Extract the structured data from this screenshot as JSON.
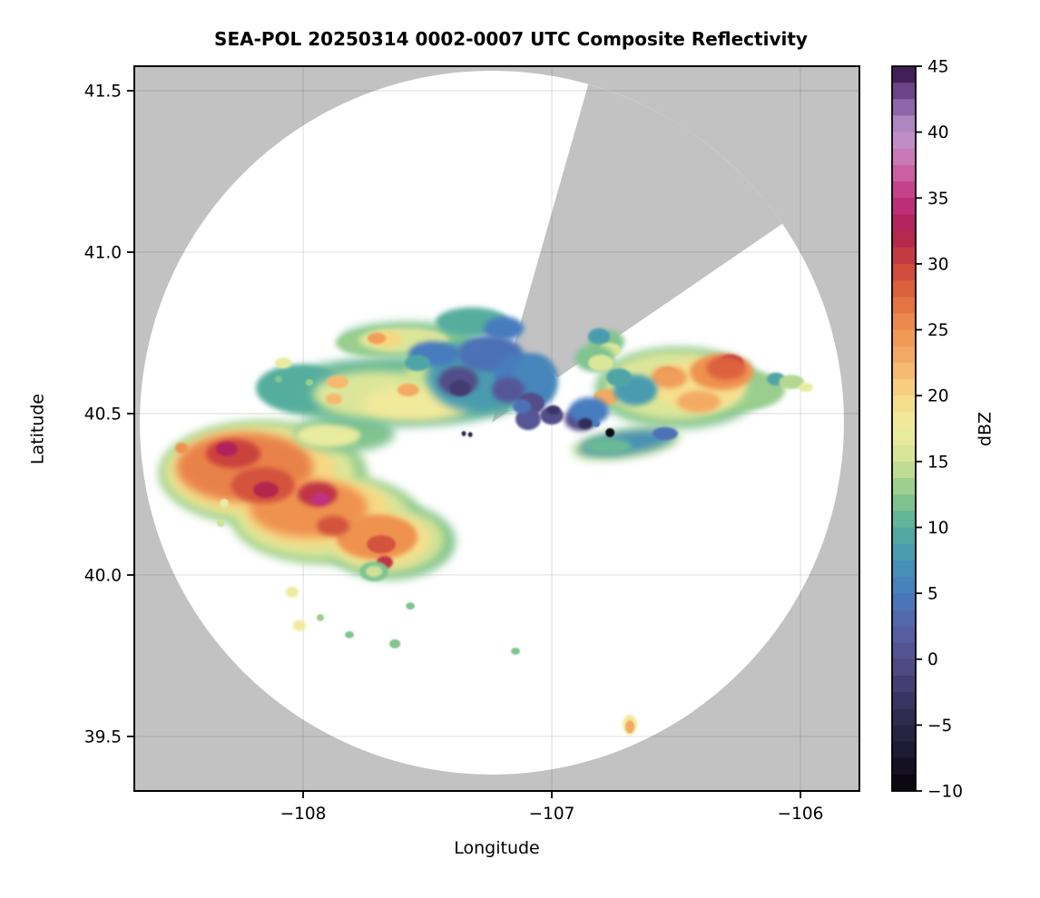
{
  "title": "SEA-POL 20250314 0002-0007 UTC Composite Reflectivity",
  "axes": {
    "xlabel": "Longitude",
    "ylabel": "Latitude",
    "xlim": [
      -108.679,
      -105.763
    ],
    "ylim": [
      39.331,
      41.576
    ],
    "xticks": [
      -108,
      -107,
      -106
    ],
    "yticks": [
      41.5,
      41.0,
      40.5,
      40.0,
      39.5
    ],
    "grid": true
  },
  "colorbar": {
    "label": "dBZ",
    "min": -10,
    "max": 45,
    "ticks": [
      45,
      40,
      35,
      30,
      25,
      20,
      15,
      10,
      5,
      0,
      -5,
      -10
    ],
    "segment_step": 1.25,
    "anchors": [
      {
        "v": -10,
        "c": "#060409"
      },
      {
        "v": -7.5,
        "c": "#18152c"
      },
      {
        "v": -5,
        "c": "#2a274a"
      },
      {
        "v": -2.5,
        "c": "#3e3a6b"
      },
      {
        "v": 0,
        "c": "#524e89"
      },
      {
        "v": 2.5,
        "c": "#5763a9"
      },
      {
        "v": 5,
        "c": "#477bbe"
      },
      {
        "v": 7.5,
        "c": "#4697b3"
      },
      {
        "v": 10,
        "c": "#55ae9d"
      },
      {
        "v": 12.5,
        "c": "#8cc98c"
      },
      {
        "v": 15,
        "c": "#cfe295"
      },
      {
        "v": 17.5,
        "c": "#f0eda1"
      },
      {
        "v": 20,
        "c": "#f6d883"
      },
      {
        "v": 22.5,
        "c": "#f4b169"
      },
      {
        "v": 25,
        "c": "#ef9250"
      },
      {
        "v": 27.5,
        "c": "#e06a3c"
      },
      {
        "v": 30,
        "c": "#cb423d"
      },
      {
        "v": 32.5,
        "c": "#ad2052"
      },
      {
        "v": 35,
        "c": "#c13380"
      },
      {
        "v": 37.5,
        "c": "#cd6fae"
      },
      {
        "v": 40,
        "c": "#bd97cc"
      },
      {
        "v": 42.5,
        "c": "#7e569d"
      },
      {
        "v": 45,
        "c": "#2f0c40"
      }
    ]
  },
  "colors": {
    "no_data_gray": "#c2c2c2",
    "coverage_white": "#ffffff",
    "grid_line": "rgba(0,0,0,0.10)",
    "frame": "#000000"
  },
  "radar": {
    "center_lon": -107.241,
    "center_lat": 40.472,
    "radius_lat_deg": 1.09,
    "blocked_sector": {
      "az_from_deg": 15.9,
      "az_to_deg": 55.6
    },
    "apex_notch_lonlat": [
      [
        -107.182,
        40.511
      ],
      [
        -107.029,
        40.663
      ],
      [
        -106.883,
        40.522
      ]
    ]
  },
  "chart_data": {
    "type": "heatmap",
    "units": "dBZ",
    "echo_format": [
      "lon",
      "lat",
      "rx_deg",
      "ry_deg",
      "dbz",
      "rot_deg_optional"
    ],
    "echoes": [
      [
        -108.161,
        40.315,
        0.42,
        0.163,
        13
      ],
      [
        -107.905,
        40.174,
        0.383,
        0.141,
        13
      ],
      [
        -107.65,
        40.104,
        0.263,
        0.118,
        12
      ],
      [
        -107.595,
        40.124,
        0.11,
        0.079,
        10
      ],
      [
        -108.179,
        40.32,
        0.383,
        0.146,
        16
      ],
      [
        -107.923,
        40.18,
        0.347,
        0.126,
        16
      ],
      [
        -107.668,
        40.11,
        0.237,
        0.104,
        15
      ],
      [
        -108.197,
        40.32,
        0.329,
        0.126,
        20
      ],
      [
        -107.942,
        40.194,
        0.292,
        0.107,
        20
      ],
      [
        -107.686,
        40.11,
        0.201,
        0.084,
        19
      ],
      [
        -108.234,
        40.334,
        0.274,
        0.107,
        26
      ],
      [
        -107.978,
        40.208,
        0.237,
        0.09,
        25
      ],
      [
        -107.704,
        40.118,
        0.164,
        0.07,
        25
      ],
      [
        -108.281,
        40.376,
        0.11,
        0.045,
        30
      ],
      [
        -108.161,
        40.278,
        0.128,
        0.056,
        29
      ],
      [
        -107.942,
        40.25,
        0.08,
        0.037,
        31
      ],
      [
        -107.88,
        40.152,
        0.066,
        0.031,
        29
      ],
      [
        -107.686,
        40.095,
        0.058,
        0.028,
        29
      ],
      [
        -108.307,
        40.39,
        0.044,
        0.022,
        33
      ],
      [
        -108.15,
        40.264,
        0.051,
        0.025,
        32
      ],
      [
        -107.931,
        40.236,
        0.037,
        0.02,
        35
      ],
      [
        -107.672,
        40.039,
        0.033,
        0.02,
        31
      ],
      [
        -108.489,
        40.393,
        0.026,
        0.017,
        25
      ],
      [
        -108.318,
        40.222,
        0.018,
        0.014,
        17
      ],
      [
        -108.332,
        40.16,
        0.015,
        0.011,
        15
      ],
      [
        -107.832,
        40.438,
        0.201,
        0.056,
        12
      ],
      [
        -107.898,
        40.433,
        0.128,
        0.037,
        17
      ],
      [
        -107.715,
        40.011,
        0.058,
        0.031,
        12
      ],
      [
        -107.715,
        40.011,
        0.033,
        0.017,
        15
      ],
      [
        -108.044,
        39.947,
        0.026,
        0.017,
        18
      ],
      [
        -107.569,
        39.904,
        0.018,
        0.011,
        12
      ],
      [
        -107.931,
        39.868,
        0.015,
        0.011,
        13
      ],
      [
        -108.015,
        39.843,
        0.026,
        0.017,
        18
      ],
      [
        -107.631,
        39.787,
        0.022,
        0.014,
        12
      ],
      [
        -107.814,
        39.815,
        0.018,
        0.011,
        12
      ],
      [
        -107.146,
        39.764,
        0.018,
        0.011,
        12
      ],
      [
        -107.613,
        40.567,
        0.529,
        0.107,
        11
      ],
      [
        -108.015,
        40.579,
        0.175,
        0.073,
        10
      ],
      [
        -107.704,
        40.559,
        0.256,
        0.073,
        16
      ],
      [
        -107.394,
        40.615,
        0.201,
        0.062,
        15
      ],
      [
        -107.54,
        40.531,
        0.219,
        0.056,
        18
      ],
      [
        -107.861,
        40.598,
        0.044,
        0.02,
        22
      ],
      [
        -107.876,
        40.545,
        0.033,
        0.017,
        22
      ],
      [
        -107.577,
        40.573,
        0.044,
        0.02,
        23
      ],
      [
        -107.577,
        40.728,
        0.274,
        0.056,
        12
      ],
      [
        -107.723,
        40.719,
        0.146,
        0.039,
        13
      ],
      [
        -107.595,
        40.728,
        0.182,
        0.039,
        16
      ],
      [
        -107.668,
        40.73,
        0.066,
        0.025,
        20
      ],
      [
        -107.704,
        40.733,
        0.037,
        0.017,
        24
      ],
      [
        -107.321,
        40.784,
        0.146,
        0.045,
        10
      ],
      [
        -107.193,
        40.764,
        0.08,
        0.037,
        5
      ],
      [
        -107.285,
        40.615,
        0.219,
        0.112,
        8
      ],
      [
        -107.474,
        40.685,
        0.102,
        0.039,
        5
      ],
      [
        -107.248,
        40.685,
        0.128,
        0.056,
        4
      ],
      [
        -107.12,
        40.615,
        0.11,
        0.07,
        5
      ],
      [
        -107.066,
        40.601,
        0.091,
        0.084,
        6
      ],
      [
        -107.376,
        40.601,
        0.08,
        0.045,
        0
      ],
      [
        -107.369,
        40.579,
        0.044,
        0.025,
        -2
      ],
      [
        -107.175,
        40.573,
        0.066,
        0.039,
        1
      ],
      [
        -107.084,
        40.531,
        0.055,
        0.034,
        0
      ],
      [
        -107.54,
        40.657,
        0.051,
        0.025,
        9
      ],
      [
        -108.08,
        40.657,
        0.033,
        0.017,
        17
      ],
      [
        -108.099,
        40.607,
        0.015,
        0.011,
        12
      ],
      [
        -107.975,
        40.596,
        0.015,
        0.011,
        13
      ],
      [
        -106.781,
        40.722,
        0.073,
        0.037,
        12
      ],
      [
        -106.81,
        40.739,
        0.044,
        0.025,
        8
      ],
      [
        -106.766,
        40.697,
        0.044,
        0.022,
        16
      ],
      [
        -107.095,
        40.483,
        0.051,
        0.034,
        1
      ],
      [
        -107.12,
        40.522,
        0.037,
        0.022,
        4
      ],
      [
        -106.489,
        40.579,
        0.336,
        0.126,
        12
      ],
      [
        -106.226,
        40.573,
        0.164,
        0.062,
        13
      ],
      [
        -106.5,
        40.587,
        0.285,
        0.107,
        16
      ],
      [
        -106.409,
        40.587,
        0.182,
        0.079,
        19
      ],
      [
        -106.317,
        40.629,
        0.128,
        0.056,
        25
      ],
      [
        -106.281,
        40.657,
        0.051,
        0.025,
        31
      ],
      [
        -106.299,
        40.641,
        0.08,
        0.037,
        28
      ],
      [
        -106.536,
        40.621,
        0.044,
        0.022,
        27
      ],
      [
        -106.529,
        40.612,
        0.073,
        0.034,
        24
      ],
      [
        -106.781,
        40.551,
        0.051,
        0.025,
        23
      ],
      [
        -106.409,
        40.537,
        0.088,
        0.034,
        23
      ],
      [
        -106.828,
        40.671,
        0.08,
        0.042,
        12
      ],
      [
        -106.803,
        40.657,
        0.051,
        0.025,
        16
      ],
      [
        -106.664,
        40.573,
        0.088,
        0.048,
        8
      ],
      [
        -106.73,
        40.612,
        0.051,
        0.028,
        9
      ],
      [
        -106.098,
        40.607,
        0.037,
        0.02,
        9
      ],
      [
        -106.036,
        40.598,
        0.051,
        0.022,
        14
      ],
      [
        -105.978,
        40.581,
        0.029,
        0.014,
        17
      ],
      [
        -106.883,
        40.483,
        0.066,
        0.037,
        0
      ],
      [
        -106.85,
        40.508,
        0.08,
        0.042,
        5
      ],
      [
        -107.0,
        40.494,
        0.047,
        0.028,
        0
      ],
      [
        -106.865,
        40.469,
        0.029,
        0.017,
        -4
      ],
      [
        -106.993,
        40.511,
        0.026,
        0.014,
        -3
      ],
      [
        -106.701,
        40.407,
        0.219,
        0.045,
        14,
        -8
      ],
      [
        -106.701,
        40.41,
        0.19,
        0.034,
        7,
        -8
      ],
      [
        -106.774,
        40.399,
        0.095,
        0.025,
        11
      ],
      [
        -106.544,
        40.438,
        0.051,
        0.02,
        4
      ],
      [
        -106.821,
        40.469,
        0.015,
        0.011,
        5
      ],
      [
        -106.766,
        40.441,
        0.018,
        0.014,
        -9
      ],
      [
        -107.354,
        40.438,
        0.009,
        0.008,
        -5
      ],
      [
        -107.328,
        40.435,
        0.009,
        0.008,
        -5
      ],
      [
        -106.686,
        39.536,
        0.029,
        0.031,
        18
      ],
      [
        -106.686,
        39.53,
        0.018,
        0.02,
        23
      ]
    ]
  }
}
